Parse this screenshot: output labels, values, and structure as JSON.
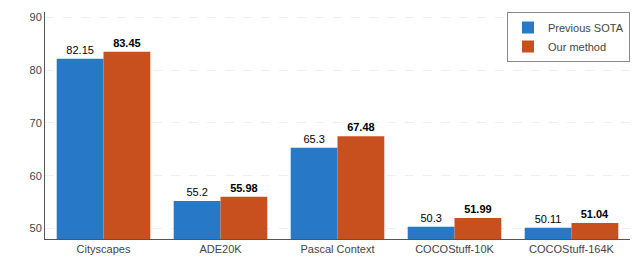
{
  "chart_data": {
    "type": "bar",
    "categories": [
      "Cityscapes",
      "ADE20K",
      "Pascal Context",
      "COCOStuff-10K",
      "COCOStuff-164K"
    ],
    "series": [
      {
        "name": "Previous SOTA",
        "color": "#2878c8",
        "values": [
          82.15,
          55.2,
          65.3,
          50.3,
          50.11
        ]
      },
      {
        "name": "Our method",
        "color": "#c8501e",
        "values": [
          83.45,
          55.98,
          67.48,
          51.99,
          51.04
        ]
      }
    ],
    "ylim": [
      48,
      91
    ],
    "yticks": [
      50,
      60,
      70,
      80,
      90
    ],
    "grid": true,
    "legend": "upper right",
    "data_labels": true
  }
}
